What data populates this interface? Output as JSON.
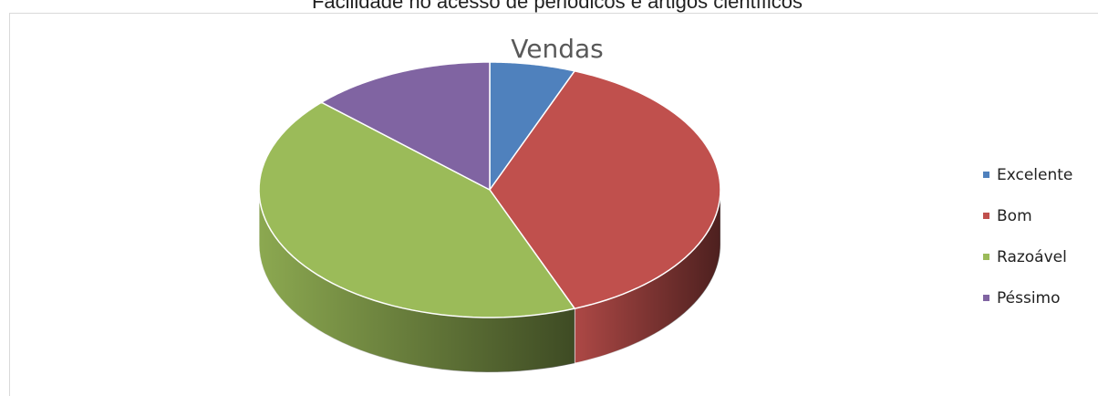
{
  "chart_data": {
    "type": "pie3d",
    "page_heading": "Facilidade no acesso de periódicos e artigos científicos",
    "title": "Vendas",
    "categories": [
      "Excelente",
      "Bom",
      "Razoável",
      "Péssimo"
    ],
    "values": [
      6,
      38,
      43,
      13
    ],
    "colors": [
      "#4f81bd",
      "#c0504d",
      "#9bbb59",
      "#8064a2"
    ],
    "legend": "right"
  }
}
